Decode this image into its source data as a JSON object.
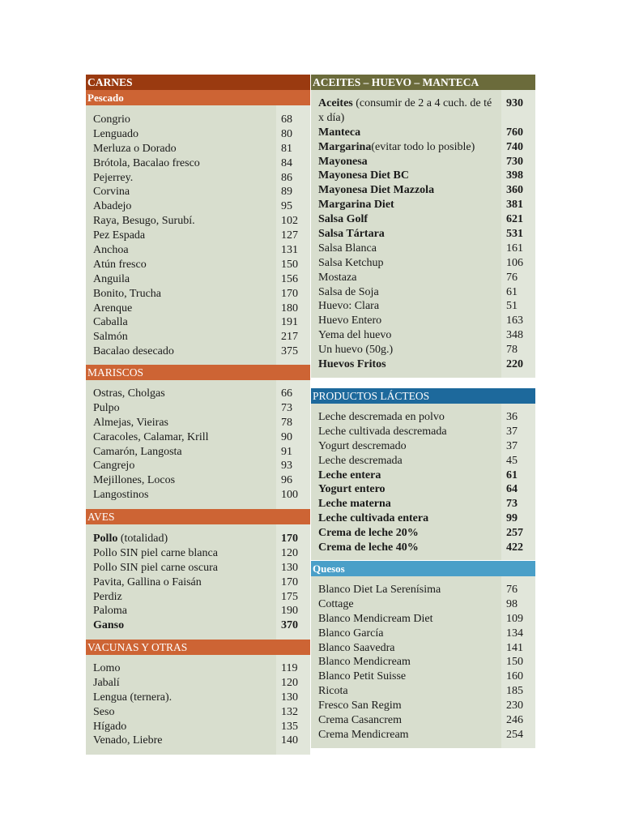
{
  "left_column": {
    "title": "CARNES",
    "sections": [
      {
        "title": "Pescado",
        "items": [
          {
            "name": "Congrio",
            "value": "68"
          },
          {
            "name": "Lenguado",
            "value": "80"
          },
          {
            "name": "Merluza o Dorado",
            "value": "81"
          },
          {
            "name": "Brótola, Bacalao fresco",
            "value": "84"
          },
          {
            "name": "Pejerrey.",
            "value": "86"
          },
          {
            "name": "Corvina",
            "value": "89"
          },
          {
            "name": "Abadejo",
            "value": "95"
          },
          {
            "name": "Raya, Besugo, Surubí.",
            "value": "102"
          },
          {
            "name": "Pez Espada",
            "value": "127"
          },
          {
            "name": "Anchoa",
            "value": "131"
          },
          {
            "name": "Atún fresco",
            "value": "150"
          },
          {
            "name": "Anguila",
            "value": "156"
          },
          {
            "name": "Bonito, Trucha",
            "value": "170"
          },
          {
            "name": "Arenque",
            "value": "180"
          },
          {
            "name": "Caballa",
            "value": "191"
          },
          {
            "name": "Salmón",
            "value": "217"
          },
          {
            "name": "Bacalao desecado",
            "value": "375"
          }
        ]
      },
      {
        "title": "MARISCOS",
        "items": [
          {
            "name": "Ostras, Cholgas",
            "value": "66"
          },
          {
            "name": "Pulpo",
            "value": "73"
          },
          {
            "name": "Almejas, Vieiras",
            "value": "78"
          },
          {
            "name": "Caracoles, Calamar, Krill",
            "value": "90"
          },
          {
            "name": "Camarón, Langosta",
            "value": "91"
          },
          {
            "name": "Cangrejo",
            "value": "93"
          },
          {
            "name": "Mejillones, Locos",
            "value": "96"
          },
          {
            "name": "Langostinos",
            "value": "100"
          }
        ]
      },
      {
        "title": "AVES",
        "items": [
          {
            "name": "Pollo",
            "note": " (totalidad)",
            "value": "170",
            "bold": true
          },
          {
            "name": "Pollo SIN piel carne blanca",
            "value": "120"
          },
          {
            "name": "Pollo SIN piel carne oscura",
            "value": "130"
          },
          {
            "name": "Pavita, Gallina o Faisán",
            "value": "170"
          },
          {
            "name": "Perdiz",
            "value": "175"
          },
          {
            "name": "Paloma",
            "value": "190"
          },
          {
            "name": "Ganso",
            "value": "370",
            "bold": true
          }
        ]
      },
      {
        "title": "VACUNAS Y OTRAS",
        "items": [
          {
            "name": "Lomo",
            "value": "119"
          },
          {
            "name": "Jabalí",
            "value": "120"
          },
          {
            "name": "Lengua (ternera).",
            "value": "130"
          },
          {
            "name": "Seso",
            "value": "132"
          },
          {
            "name": "Hígado",
            "value": "135"
          },
          {
            "name": "Venado, Liebre",
            "value": "140"
          }
        ]
      }
    ]
  },
  "right_column": {
    "aceites": {
      "title": "ACEITES – HUEVO – MANTECA",
      "items": [
        {
          "name": "Aceites",
          "note": " (consumir de 2 a 4 cuch. de té x día)",
          "value": "930",
          "bold": true
        },
        {
          "name": "Manteca",
          "value": "760",
          "bold": true
        },
        {
          "name": "Margarina",
          "note": "(evitar todo lo posible)",
          "value": "740",
          "bold": true
        },
        {
          "name": "Mayonesa",
          "value": "730",
          "bold": true
        },
        {
          "name": "Mayonesa Diet BC",
          "value": "398",
          "bold": true
        },
        {
          "name": "Mayonesa Diet Mazzola",
          "value": "360",
          "bold": true
        },
        {
          "name": "Margarina Diet",
          "value": "381",
          "bold": true
        },
        {
          "name": "Salsa Golf",
          "value": "621",
          "bold": true
        },
        {
          "name": "Salsa Tártara",
          "value": "531",
          "bold": true
        },
        {
          "name": "Salsa Blanca",
          "value": "161"
        },
        {
          "name": "Salsa Ketchup",
          "value": "106"
        },
        {
          "name": "Mostaza",
          "value": "76"
        },
        {
          "name": "Salsa de Soja",
          "value": "61"
        },
        {
          "name": "Huevo: Clara",
          "value": "51"
        },
        {
          "name": "Huevo Entero",
          "value": "163"
        },
        {
          "name": "Yema del huevo",
          "value": "348"
        },
        {
          "name": "Un huevo (50g.)",
          "value": "78"
        },
        {
          "name": "Huevos Fritos",
          "value": "220",
          "bold": true
        }
      ]
    },
    "lacteos": {
      "title": "PRODUCTOS LÁCTEOS",
      "items": [
        {
          "name": "Leche descremada en polvo",
          "value": "36"
        },
        {
          "name": "Leche cultivada descremada",
          "value": "37"
        },
        {
          "name": "Yogurt descremado",
          "value": "37"
        },
        {
          "name": "Leche descremada",
          "value": "45"
        },
        {
          "name": "Leche entera",
          "value": "61",
          "bold": true
        },
        {
          "name": "Yogurt entero",
          "value": "64",
          "bold": true
        },
        {
          "name": "Leche materna",
          "value": "73",
          "bold": true
        },
        {
          "name": "Leche cultivada entera",
          "value": "99",
          "bold": true
        },
        {
          "name": "Crema de leche 20%",
          "value": "257",
          "bold": true
        },
        {
          "name": "Crema de leche 40%",
          "value": "422",
          "bold": true
        }
      ]
    },
    "quesos": {
      "title": "Quesos",
      "items": [
        {
          "name": "Blanco Diet La Serenísima",
          "value": "76"
        },
        {
          "name": "Cottage",
          "value": "98"
        },
        {
          "name": "Blanco Mendicream Diet",
          "value": "109"
        },
        {
          "name": "Blanco García",
          "value": "134"
        },
        {
          "name": "Blanco Saavedra",
          "value": "141"
        },
        {
          "name": "Blanco Mendicream",
          "value": "150"
        },
        {
          "name": "Blanco Petit Suisse",
          "value": "160"
        },
        {
          "name": "Ricota",
          "value": "185"
        },
        {
          "name": "Fresco San Regim",
          "value": "230"
        },
        {
          "name": "Crema Casancrem",
          "value": "246"
        },
        {
          "name": "Crema Mendicream",
          "value": "254"
        }
      ]
    }
  },
  "colors": {
    "carnes_header": "#9a3a10",
    "subsection_header": "#cd6434",
    "aceites_header": "#6b6b3b",
    "lacteos_header": "#1d699c",
    "quesos_header": "#4a9fc8",
    "table_body": "#d8dece",
    "value_column": "#e1e6da"
  }
}
